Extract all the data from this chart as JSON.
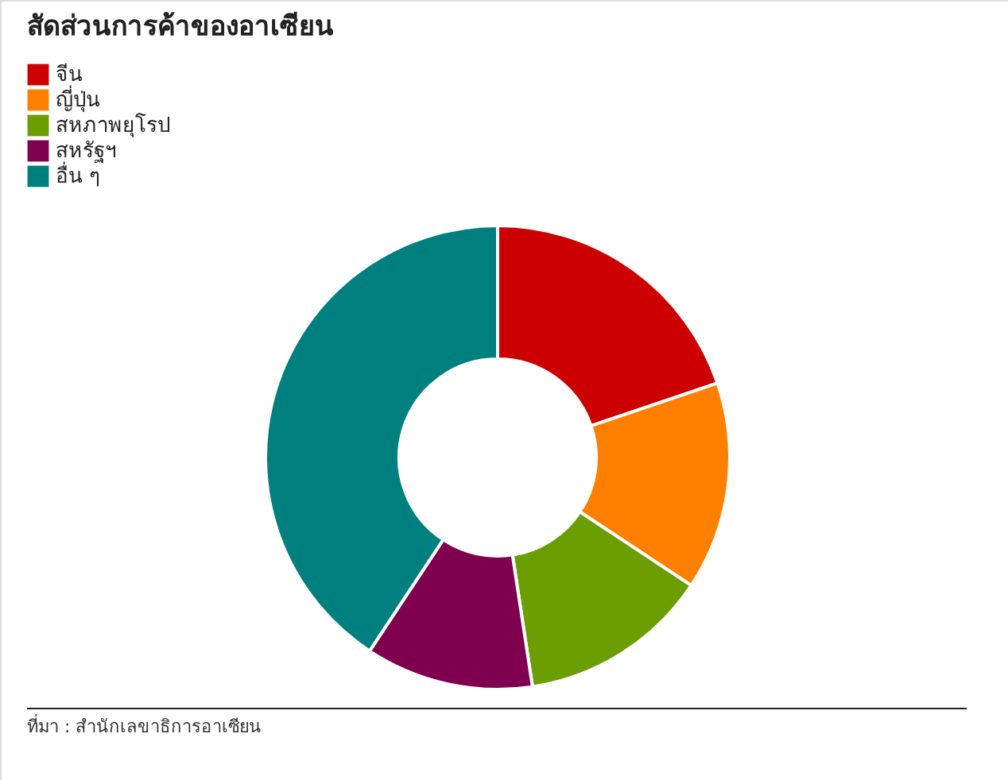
{
  "chart_data": {
    "type": "donut",
    "title": "สัดส่วนการค้าของอาเซียน",
    "categories": [
      "จีน",
      "ญี่ปุ่น",
      "สหภาพยุโรป",
      "สหรัฐฯ",
      "อื่น ๆ"
    ],
    "values": [
      19.8,
      14.5,
      13.3,
      11.7,
      40.7
    ],
    "colors": [
      "#cc0000",
      "#ff7f00",
      "#6b9e00",
      "#800050",
      "#007f7f"
    ],
    "legend": "top left",
    "annotations": [
      "ที่มา : สำนักเลขาธิการอาเซียน"
    ]
  }
}
